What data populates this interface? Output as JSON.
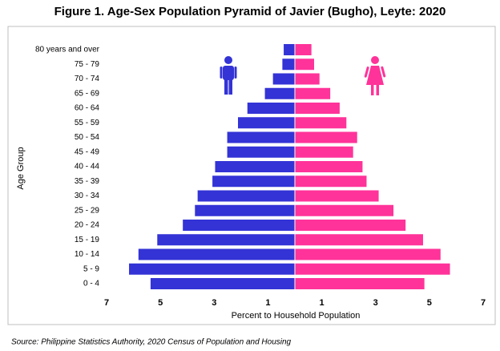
{
  "chart_data": {
    "type": "pyramid",
    "title": "Figure 1. Age-Sex Population Pyramid of Javier (Bugho), Leyte: 2020",
    "x_label": "Percent to Household Population",
    "y_label": "Age Group",
    "source": "Source: Philippine Statistics Authority, 2020 Census of Population and Housing",
    "categories": [
      "80 years and over",
      "75 - 79",
      "70 - 74",
      "65 - 69",
      "60 - 64",
      "55 - 59",
      "50 - 54",
      "45 - 49",
      "40 - 44",
      "35 - 39",
      "30 - 34",
      "25 - 29",
      "20 - 24",
      "15 - 19",
      "10 - 14",
      "5 - 9",
      "0 - 4"
    ],
    "series": [
      {
        "color": "#3333d6",
        "side": "left",
        "values": [
          0.4,
          0.45,
          0.8,
          1.1,
          1.75,
          2.1,
          2.5,
          2.5,
          2.95,
          3.05,
          3.6,
          3.7,
          4.15,
          5.1,
          5.8,
          6.15,
          5.35
        ]
      },
      {
        "color": "#ff3399",
        "side": "right",
        "values": [
          0.6,
          0.7,
          0.9,
          1.3,
          1.65,
          1.9,
          2.3,
          2.15,
          2.5,
          2.65,
          3.1,
          3.65,
          4.1,
          4.75,
          5.4,
          5.75,
          4.8
        ]
      }
    ],
    "xlim": [
      -7,
      7
    ],
    "xticks": [
      {
        "value": -7,
        "label": "7"
      },
      {
        "value": -5,
        "label": "5"
      },
      {
        "value": -3,
        "label": "3"
      },
      {
        "value": -1,
        "label": "1"
      },
      1,
      3,
      5,
      7
    ],
    "grid": false
  }
}
